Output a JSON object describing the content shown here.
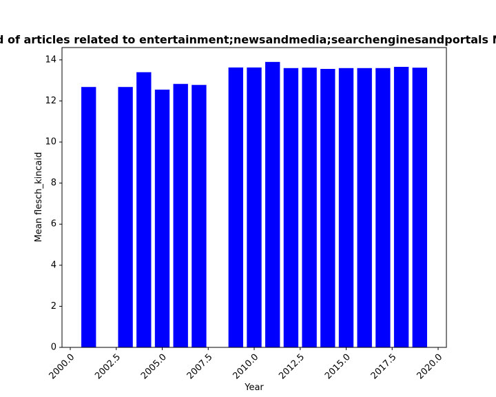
{
  "chart_data": {
    "type": "bar",
    "title": "Mean flesch_kincaid of articles related to entertainment;newsandmedia;searchenginesandportals Mean flesch_kincaid",
    "xlabel": "Year",
    "ylabel": "Mean flesch_kincaid",
    "xlim": [
      1999.55,
      2020.45
    ],
    "ylim": [
      0,
      14.6
    ],
    "bar_width": 0.8,
    "bar_color": "#0000ff",
    "grid": false,
    "legend": "none",
    "x_ticks": [
      2000.0,
      2002.5,
      2005.0,
      2007.5,
      2010.0,
      2012.5,
      2015.0,
      2017.5,
      2020.0
    ],
    "x_tick_labels": [
      "2000.0",
      "2002.5",
      "2005.0",
      "2007.5",
      "2010.0",
      "2012.5",
      "2015.0",
      "2017.5",
      "2020.0"
    ],
    "y_ticks": [
      0,
      2,
      4,
      6,
      8,
      10,
      12,
      14
    ],
    "y_tick_labels": [
      "0",
      "2",
      "4",
      "6",
      "8",
      "10",
      "12",
      "14"
    ],
    "x": [
      2001,
      2003,
      2004,
      2005,
      2006,
      2007,
      2009,
      2010,
      2011,
      2012,
      2013,
      2014,
      2015,
      2016,
      2017,
      2018,
      2019
    ],
    "values": [
      12.68,
      12.68,
      13.4,
      12.55,
      12.83,
      12.78,
      13.63,
      13.63,
      13.9,
      13.6,
      13.62,
      13.56,
      13.6,
      13.6,
      13.6,
      13.66,
      13.62
    ]
  }
}
